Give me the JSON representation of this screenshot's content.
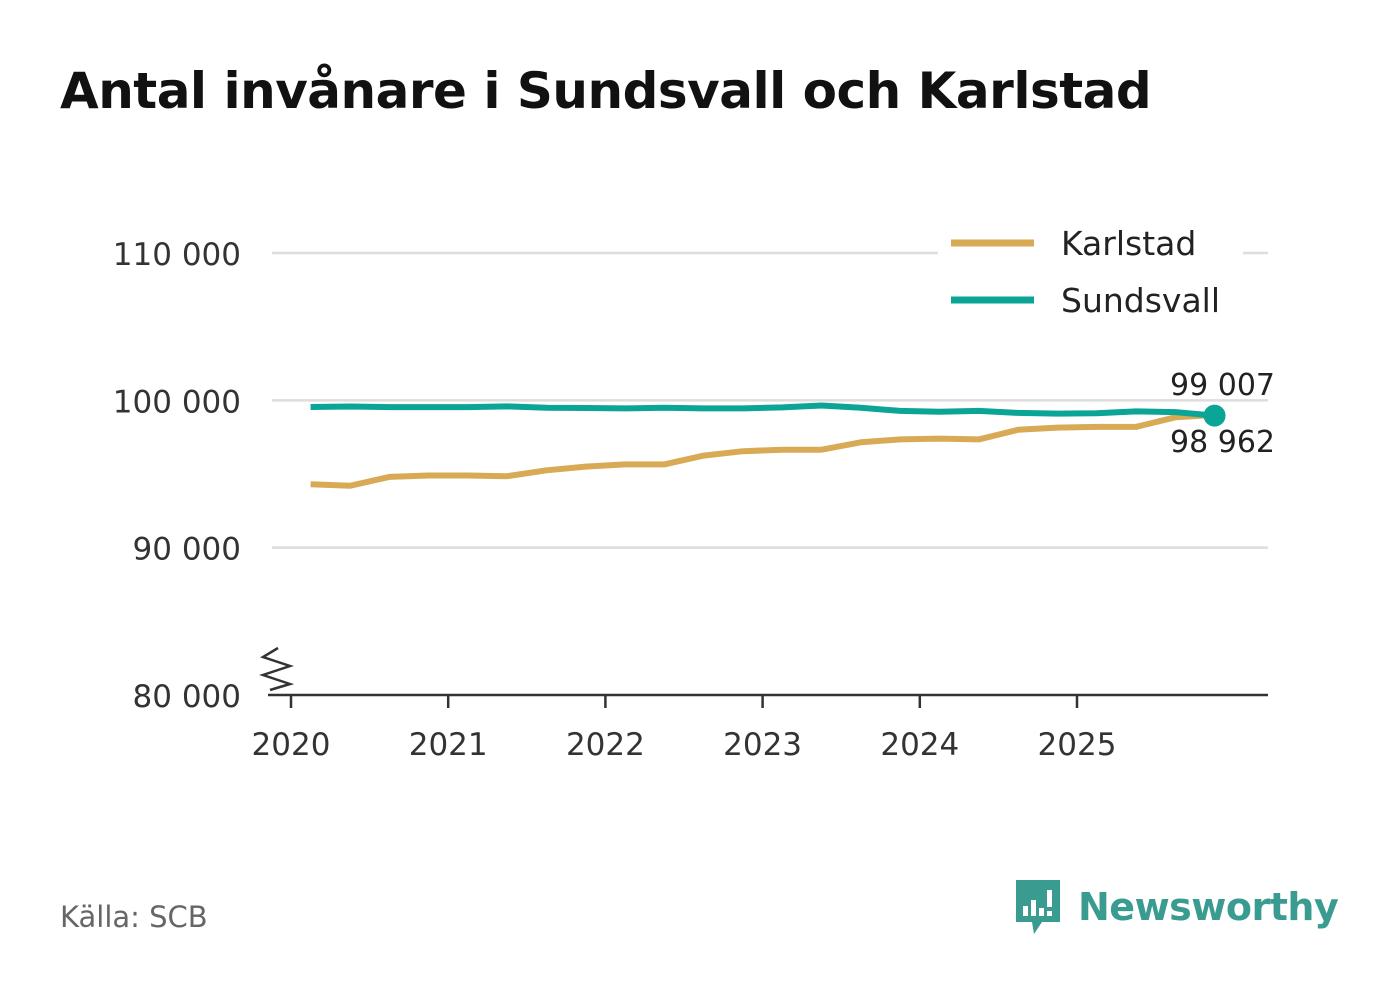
{
  "title": "Antal invånare i Sundsvall och Karlstad",
  "source": "Källa: SCB",
  "brand": {
    "name": "Newsworthy",
    "icon": "newsworthy-logo-icon"
  },
  "colors": {
    "karlstad": "#d9aa55",
    "sundsvall": "#0aa596",
    "grid": "#dddddd",
    "axis": "#333333",
    "brand": "#3a9b90"
  },
  "chart_data": {
    "type": "line",
    "title": "Antal invånare i Sundsvall och Karlstad",
    "xlabel": "",
    "ylabel": "",
    "ylim": [
      80000,
      110000
    ],
    "y_ticks": [
      80000,
      90000,
      100000,
      110000
    ],
    "y_tick_labels": [
      "80 000",
      "90 000",
      "100 000",
      "110 000"
    ],
    "x_range": [
      2020.0,
      2026.0
    ],
    "x_ticks": [
      2020,
      2021,
      2022,
      2023,
      2024,
      2025
    ],
    "x_tick_labels": [
      "2020",
      "2021",
      "2022",
      "2023",
      "2024",
      "2025"
    ],
    "axis_break": true,
    "grid": true,
    "legend_position": "top-right",
    "x": [
      2020.125,
      2020.375,
      2020.625,
      2020.875,
      2021.125,
      2021.375,
      2021.625,
      2021.875,
      2022.125,
      2022.375,
      2022.625,
      2022.875,
      2023.125,
      2023.375,
      2023.625,
      2023.875,
      2024.125,
      2024.375,
      2024.625,
      2024.875,
      2025.125,
      2025.375,
      2025.625,
      2025.875
    ],
    "series": [
      {
        "name": "Karlstad",
        "color": "#d9aa55",
        "values": [
          94300,
          94200,
          94800,
          94900,
          94900,
          94850,
          95250,
          95500,
          95650,
          95650,
          96250,
          96550,
          96650,
          96650,
          97150,
          97350,
          97400,
          97350,
          98000,
          98150,
          98200,
          98200,
          98850,
          99007
        ],
        "end_label": "99 007"
      },
      {
        "name": "Sundsvall",
        "color": "#0aa596",
        "values": [
          99550,
          99580,
          99540,
          99540,
          99540,
          99590,
          99490,
          99480,
          99450,
          99500,
          99450,
          99450,
          99520,
          99650,
          99500,
          99280,
          99230,
          99280,
          99150,
          99100,
          99130,
          99250,
          99200,
          98962
        ],
        "end_label": "98 962"
      }
    ]
  }
}
